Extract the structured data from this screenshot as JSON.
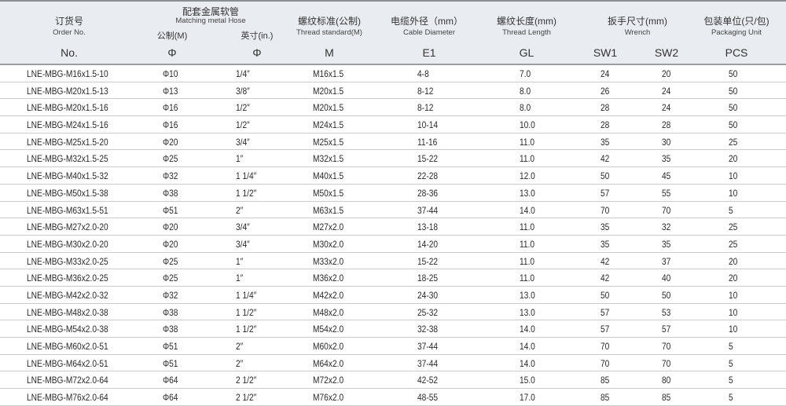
{
  "header": {
    "order": {
      "cn": "订货号",
      "en": "Order No.",
      "code": "No."
    },
    "hose": {
      "cn": "配套金属软管",
      "en": "Matching metal Hose",
      "metric": "公制(M)",
      "inch": "英寸(in.)",
      "code_metric": "Φ",
      "code_inch": "Φ"
    },
    "thread": {
      "cn": "螺纹标准(公制)",
      "en": "Thread standard(M)",
      "code": "M"
    },
    "cable": {
      "cn": "电缆外径（mm）",
      "en": "Cable Diameter",
      "code": "E1"
    },
    "length": {
      "cn": "螺纹长度(mm)",
      "en": "Thread  Length",
      "code": "GL"
    },
    "wrench": {
      "cn": "扳手尺寸(mm)",
      "en": "Wrench",
      "code1": "SW1",
      "code2": "SW2"
    },
    "pack": {
      "cn": "包装单位(只/包)",
      "en": "Packaging Unit",
      "code": "PCS"
    }
  },
  "rows": [
    [
      "LNE-MBG-M16x1.5-10",
      "Φ10",
      "1/4″",
      "M16x1.5",
      "4-8",
      "7.0",
      "24",
      "20",
      "50"
    ],
    [
      "LNE-MBG-M20x1.5-13",
      "Φ13",
      "3/8″",
      "M20x1.5",
      "8-12",
      "8.0",
      "26",
      "24",
      "50"
    ],
    [
      "LNE-MBG-M20x1.5-16",
      "Φ16",
      "1/2″",
      "M20x1.5",
      "8-12",
      "8.0",
      "28",
      "24",
      "50"
    ],
    [
      "LNE-MBG-M24x1.5-16",
      "Φ16",
      "1/2″",
      "M24x1.5",
      "10-14",
      "10.0",
      "28",
      "28",
      "50"
    ],
    [
      "LNE-MBG-M25x1.5-20",
      "Φ20",
      "3/4″",
      "M25x1.5",
      "11-16",
      "11.0",
      "35",
      "30",
      "25"
    ],
    [
      "LNE-MBG-M32x1.5-25",
      "Φ25",
      "1″",
      "M32x1.5",
      "15-22",
      "11.0",
      "42",
      "35",
      "20"
    ],
    [
      "LNE-MBG-M40x1.5-32",
      "Φ32",
      "1 1/4″",
      "M40x1.5",
      "22-28",
      "12.0",
      "50",
      "45",
      "10"
    ],
    [
      "LNE-MBG-M50x1.5-38",
      "Φ38",
      "1 1/2″",
      "M50x1.5",
      "28-36",
      "13.0",
      "57",
      "55",
      "10"
    ],
    [
      "LNE-MBG-M63x1.5-51",
      "Φ51",
      "2″",
      "M63x1.5",
      "37-44",
      "14.0",
      "70",
      "70",
      "5"
    ],
    [
      "LNE-MBG-M27x2.0-20",
      "Φ20",
      "3/4″",
      "M27x2.0",
      "13-18",
      "11.0",
      "35",
      "32",
      "25"
    ],
    [
      "LNE-MBG-M30x2.0-20",
      "Φ20",
      "3/4″",
      "M30x2.0",
      "14-20",
      "11.0",
      "35",
      "35",
      "25"
    ],
    [
      "LNE-MBG-M33x2.0-25",
      "Φ25",
      "1″",
      "M33x2.0",
      "15-22",
      "11.0",
      "42",
      "37",
      "20"
    ],
    [
      "LNE-MBG-M36x2.0-25",
      "Φ25",
      "1″",
      "M36x2.0",
      "18-25",
      "11.0",
      "42",
      "40",
      "20"
    ],
    [
      "LNE-MBG-M42x2.0-32",
      "Φ32",
      "1 1/4″",
      "M42x2.0",
      "24-30",
      "13.0",
      "50",
      "50",
      "10"
    ],
    [
      "LNE-MBG-M48x2.0-38",
      "Φ38",
      "1 1/2″",
      "M48x2.0",
      "25-32",
      "13.0",
      "57",
      "53",
      "10"
    ],
    [
      "LNE-MBG-M54x2.0-38",
      "Φ38",
      "1 1/2″",
      "M54x2.0",
      "32-38",
      "14.0",
      "57",
      "57",
      "10"
    ],
    [
      "LNE-MBG-M60x2.0-51",
      "Φ51",
      "2″",
      "M60x2.0",
      "37-44",
      "14.0",
      "70",
      "70",
      "5"
    ],
    [
      "LNE-MBG-M64x2.0-51",
      "Φ51",
      "2″",
      "M64x2.0",
      "37-44",
      "14.0",
      "70",
      "70",
      "5"
    ],
    [
      "LNE-MBG-M72x2.0-64",
      "Φ64",
      "2 1/2″",
      "M72x2.0",
      "42-52",
      "15.0",
      "85",
      "80",
      "5"
    ],
    [
      "LNE-MBG-M76x2.0-64",
      "Φ64",
      "2 1/2″",
      "M76x2.0",
      "48-55",
      "17.0",
      "85",
      "85",
      "5"
    ]
  ]
}
